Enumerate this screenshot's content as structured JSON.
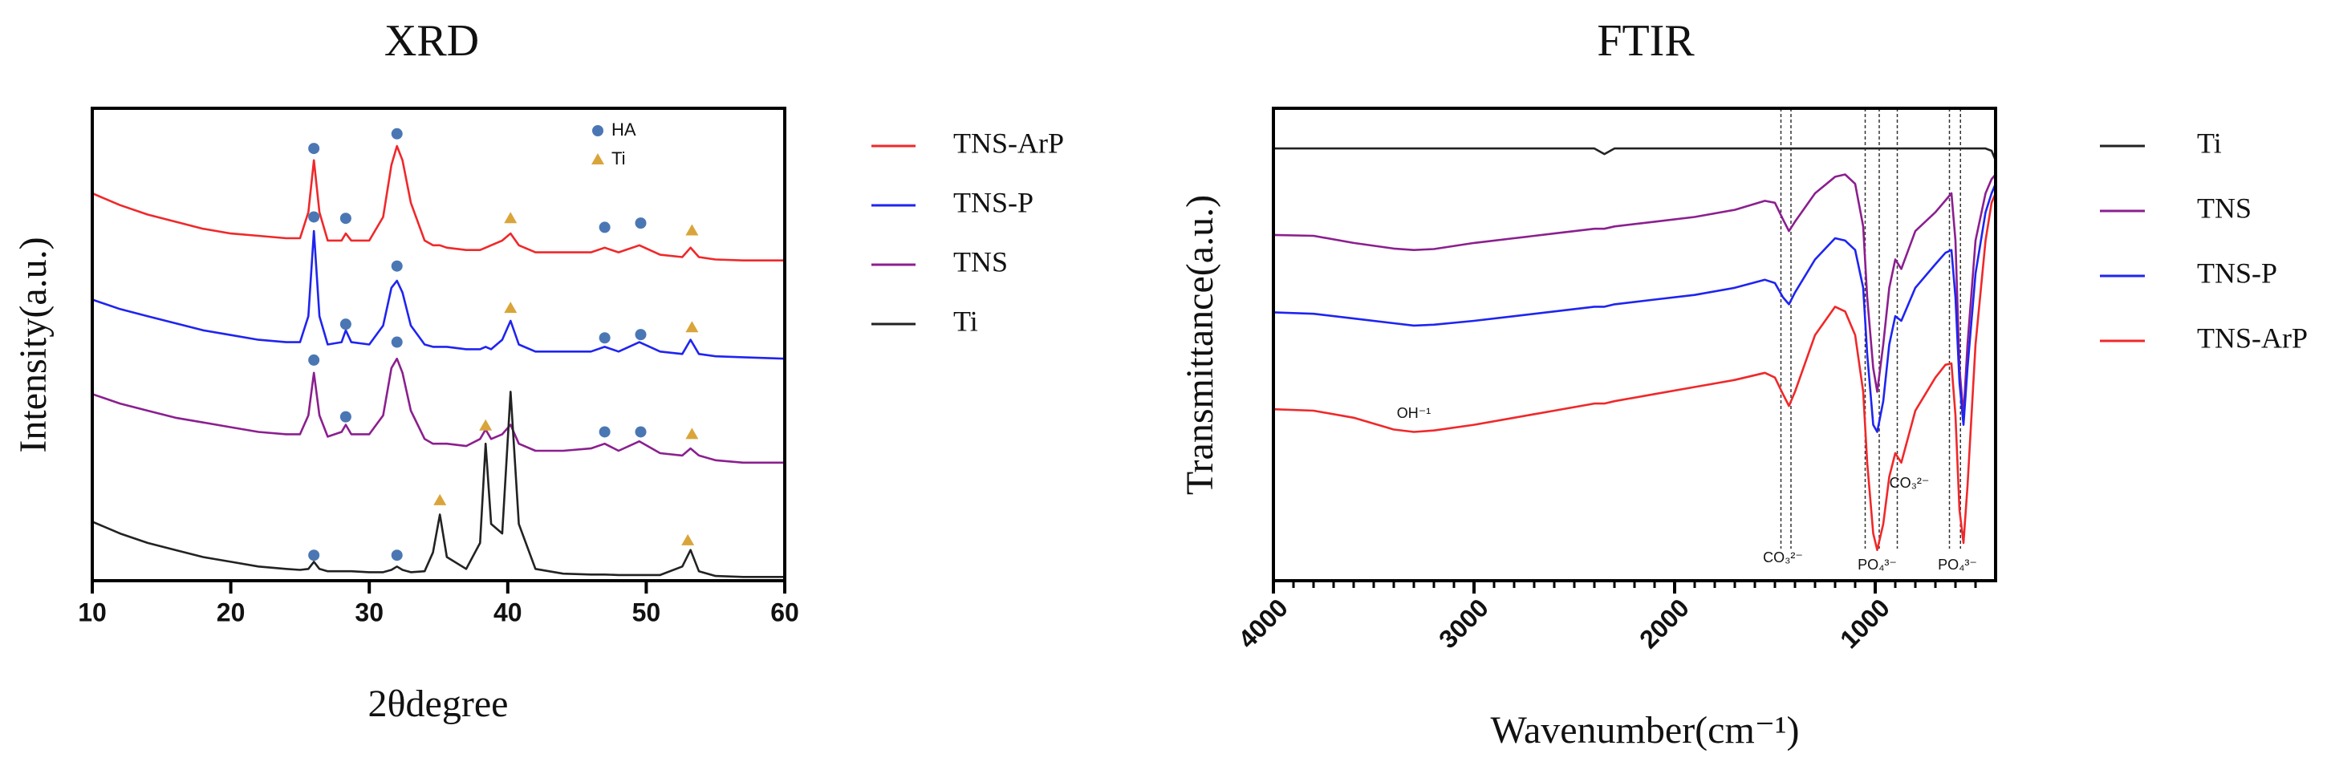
{
  "chart_data": [
    {
      "type": "line",
      "title": "XRD",
      "x_label": "2θdegree",
      "y_label": "Intensity(a.u.)",
      "xlim": [
        10,
        60
      ],
      "xticks": [
        10,
        20,
        30,
        40,
        50,
        60
      ],
      "ylim": [
        0,
        100
      ],
      "x": [
        10,
        12,
        14,
        16,
        18,
        20,
        22,
        24,
        25,
        25.6,
        26,
        26.4,
        27,
        28,
        28.3,
        28.7,
        30,
        31,
        31.6,
        32,
        32.4,
        33,
        34,
        34.6,
        35.1,
        35.6,
        37,
        38,
        38.4,
        38.8,
        39.6,
        40.2,
        40.8,
        42,
        44,
        46,
        47,
        48,
        49.5,
        51,
        52.6,
        53.2,
        53.8,
        55,
        57,
        60
      ],
      "series": [
        {
          "name": "TNS-ArP",
          "color": "#f0282a",
          "values": [
            82,
            79.5,
            77.5,
            76,
            74.5,
            73.5,
            73,
            72.5,
            72.5,
            78,
            89,
            78,
            72,
            72,
            73.5,
            72,
            72,
            77,
            88,
            92,
            89,
            80,
            72,
            71,
            71,
            70.5,
            70,
            70,
            70.5,
            71,
            72,
            73.5,
            71,
            69.5,
            69.5,
            69.5,
            70.5,
            69.5,
            71,
            69,
            68.5,
            70.5,
            68.5,
            68,
            67.8,
            67.8
          ]
        },
        {
          "name": "TNS-P",
          "color": "#1f24f0",
          "values": [
            59.5,
            57.5,
            56,
            54.5,
            53,
            52,
            51,
            50.5,
            50.5,
            56,
            74,
            56,
            50,
            50.5,
            53,
            50.5,
            50,
            54,
            62,
            63.5,
            61,
            54,
            50,
            49.5,
            49.5,
            49.5,
            49,
            49,
            49.5,
            49,
            51,
            55,
            50,
            48.5,
            48.5,
            48.5,
            49.5,
            48.5,
            50.5,
            48.5,
            48,
            51,
            48,
            47.5,
            47.3,
            47
          ]
        },
        {
          "name": "TNS",
          "color": "#8b1f8f",
          "values": [
            39.5,
            37.5,
            36,
            34.5,
            33.5,
            32.5,
            31.5,
            31,
            31,
            35,
            44,
            35,
            30.5,
            31.5,
            33,
            31,
            31,
            35,
            45,
            47,
            44,
            36,
            30,
            29,
            29,
            29,
            28.5,
            30,
            32,
            30,
            31,
            33,
            29,
            27.5,
            27.5,
            28,
            29,
            27.5,
            29.5,
            27,
            26.5,
            28,
            26.5,
            25.5,
            25,
            25
          ]
        },
        {
          "name": "Ti",
          "color": "#222222",
          "values": [
            12.5,
            10,
            8,
            6.5,
            5,
            4,
            3,
            2.5,
            2.3,
            2.5,
            4,
            2.5,
            2,
            2,
            2,
            2,
            1.8,
            1.8,
            2.3,
            3,
            2.3,
            1.8,
            2,
            6,
            14,
            5,
            2.5,
            8,
            29,
            12,
            10,
            40,
            12,
            2.5,
            1.5,
            1.3,
            1.3,
            1.2,
            1.2,
            1.2,
            3,
            6.5,
            2,
            1,
            0.8,
            0.8
          ]
        }
      ],
      "markers": [
        {
          "name": "HA",
          "color": "#4a77b4",
          "symbol": "circle",
          "x": [
            26,
            28.3,
            32,
            47,
            49.6,
            26,
            28.3,
            32,
            47,
            49.6,
            26,
            28.3,
            32,
            47,
            49.6,
            26,
            32
          ],
          "y": [
            91.5,
            76.7,
            94.6,
            74.8,
            75.7,
            77,
            54.3,
            66.6,
            51.4,
            52.1,
            46.7,
            34.7,
            50.5,
            31.5,
            31.5,
            5.4,
            5.4
          ]
        },
        {
          "name": "Ti",
          "color": "#d9a53a",
          "symbol": "triangle",
          "x": [
            40.2,
            53.3,
            40.2,
            53.3,
            38.4,
            53.3,
            35.1,
            53
          ],
          "y": [
            76.7,
            74.1,
            57.7,
            53.6,
            32.8,
            31,
            17,
            8.5
          ]
        }
      ]
    },
    {
      "type": "line",
      "title": "FTIR",
      "x_label": "Wavenumber(cm⁻¹)",
      "y_label": "Transmittance(a.u.)",
      "xlim": [
        4000,
        400
      ],
      "xticks": [
        4000,
        3000,
        2000,
        1000
      ],
      "ylim": [
        0,
        100
      ],
      "xminorticks": [
        3900,
        3800,
        3700,
        3600,
        3500,
        3400,
        3300,
        3200,
        3100,
        2900,
        2800,
        2700,
        2600,
        2500,
        2400,
        2300,
        2200,
        2100,
        1900,
        1800,
        1700,
        1600,
        1500,
        1400,
        1300,
        1200,
        1100,
        900,
        800,
        700,
        600,
        500
      ],
      "x": [
        4000,
        3800,
        3600,
        3400,
        3300,
        3200,
        3000,
        2800,
        2600,
        2400,
        2350,
        2300,
        2100,
        1900,
        1700,
        1550,
        1500,
        1460,
        1430,
        1400,
        1300,
        1200,
        1150,
        1100,
        1060,
        1040,
        1010,
        990,
        960,
        930,
        900,
        870,
        800,
        700,
        650,
        620,
        600,
        580,
        560,
        540,
        500,
        450,
        420,
        400
      ],
      "series": [
        {
          "name": "Ti",
          "color": "#222222",
          "values": [
            91.5,
            91.5,
            91.5,
            91.5,
            91.5,
            91.5,
            91.5,
            91.5,
            91.5,
            91.5,
            90.3,
            91.5,
            91.5,
            91.5,
            91.5,
            91.5,
            91.5,
            91.5,
            91.5,
            91.5,
            91.5,
            91.5,
            91.5,
            91.5,
            91.5,
            91.5,
            91.5,
            91.5,
            91.5,
            91.5,
            91.5,
            91.5,
            91.5,
            91.5,
            91.5,
            91.5,
            91.5,
            91.5,
            91.5,
            91.5,
            91.5,
            91.5,
            91,
            89
          ]
        },
        {
          "name": "TNS",
          "color": "#8b1f8f",
          "values": [
            73.2,
            73,
            71.5,
            70.3,
            70,
            70.2,
            71.5,
            72.5,
            73.5,
            74.5,
            74.5,
            75,
            76,
            77,
            78.5,
            80.4,
            80,
            76.5,
            74,
            76,
            82,
            85.5,
            86,
            84,
            75,
            60,
            45,
            40,
            50,
            62,
            68,
            66,
            74,
            78,
            80.5,
            82,
            72,
            45,
            35,
            50,
            72,
            82,
            85,
            86
          ]
        },
        {
          "name": "TNS-P",
          "color": "#1f24f0",
          "values": [
            56.8,
            56.5,
            55.5,
            54.5,
            54,
            54.2,
            55,
            56,
            57,
            58,
            58,
            58.5,
            59.5,
            60.5,
            62,
            63.7,
            63,
            60,
            58.5,
            61,
            68,
            72.5,
            72,
            70,
            62,
            48,
            33,
            31.5,
            38,
            50,
            56,
            55,
            62,
            67,
            69.4,
            70,
            60,
            42,
            33,
            45,
            65,
            78,
            82,
            84
          ]
        },
        {
          "name": "TNS-ArP",
          "color": "#f0282a",
          "values": [
            36.3,
            36,
            34.5,
            32,
            31.5,
            31.8,
            33,
            34.5,
            36,
            37.5,
            37.5,
            38,
            39.5,
            41,
            42.5,
            44,
            43,
            39.5,
            37,
            40,
            52,
            58,
            57,
            52,
            40,
            25,
            10,
            6.5,
            12,
            22,
            27,
            25,
            36,
            43,
            45.7,
            46,
            35,
            15,
            8,
            20,
            50,
            72,
            80,
            82
          ]
        }
      ],
      "reference_lines": [
        1470,
        1420,
        1050,
        980,
        890,
        630,
        575
      ],
      "annotations": [
        {
          "text": "OH⁻¹",
          "x": 3300,
          "y": 35.3
        },
        {
          "text": "CO₃²⁻",
          "x": 1460,
          "y": 4.7
        },
        {
          "text": "PO₄³⁻",
          "x": 990,
          "y": 3.2
        },
        {
          "text": "CO₃²⁻",
          "x": 830,
          "y": 20.5
        },
        {
          "text": "PO₄³⁻",
          "x": 590,
          "y": 3.2
        }
      ]
    }
  ]
}
